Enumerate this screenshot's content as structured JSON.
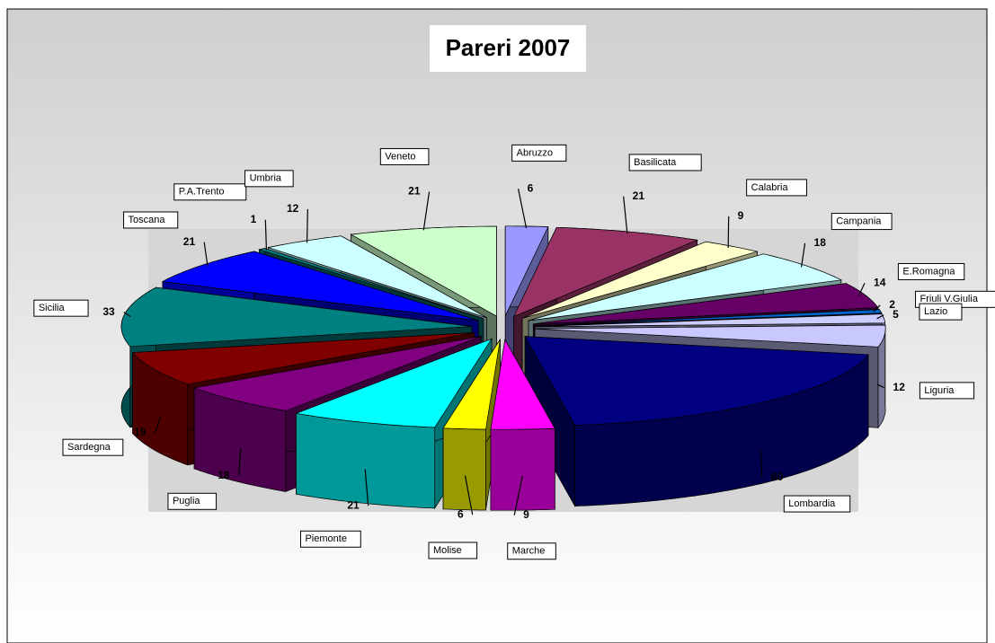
{
  "chart_data": {
    "type": "pie",
    "title": "Pareri 2007",
    "categories": [
      "Abruzzo",
      "Basilicata",
      "Calabria",
      "Campania",
      "E.Romagna",
      "Friuli V.Giulia",
      "Lazio",
      "Liguria",
      "Lombardia",
      "Marche",
      "Molise",
      "Piemonte",
      "Puglia",
      "Sardegna",
      "Sicilia",
      "Toscana",
      "P.A.Trento",
      "Umbria",
      "Veneto"
    ],
    "values": [
      6,
      21,
      9,
      18,
      14,
      2,
      5,
      12,
      60,
      9,
      6,
      21,
      18,
      19,
      33,
      21,
      1,
      12,
      21
    ],
    "colors": [
      "#9999ff",
      "#993366",
      "#ffffcc",
      "#ccffff",
      "#660066",
      "#0066cc",
      "#ccccff",
      "#c8c8ff",
      "#000080",
      "#ff00ff",
      "#ffff00",
      "#00ffff",
      "#800080",
      "#800000",
      "#008080",
      "#0000ff",
      "#008080",
      "#ccffff",
      "#ccffcc"
    ]
  }
}
